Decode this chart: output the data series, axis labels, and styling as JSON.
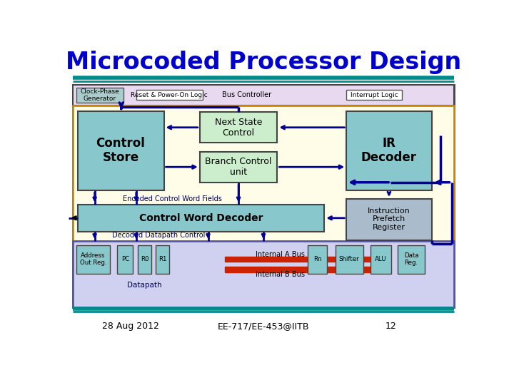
{
  "title": "Microcoded Processor Design",
  "title_color": "#0000CC",
  "title_fontsize": 24,
  "teal_color": "#008B8B",
  "footer_date": "28 Aug 2012",
  "footer_course": "EE-717/EE-453@IITB",
  "footer_page": "12",
  "bg_white": "#FFFFFF",
  "bg_lavender": "#E8D8F0",
  "bg_yellow": "#FFFDE8",
  "bg_blue_datapath": "#D0D0F0",
  "bg_teal_box": "#88C8CC",
  "bg_green_box": "#CCEECC",
  "bg_cwd": "#88C8CC",
  "bg_prefetch": "#AABCCC",
  "bg_clock": "#AACCCC",
  "bus_red": "#CC2200",
  "arrow_col": "#000099",
  "border_col": "#444444",
  "orange_border": "#CC8800"
}
